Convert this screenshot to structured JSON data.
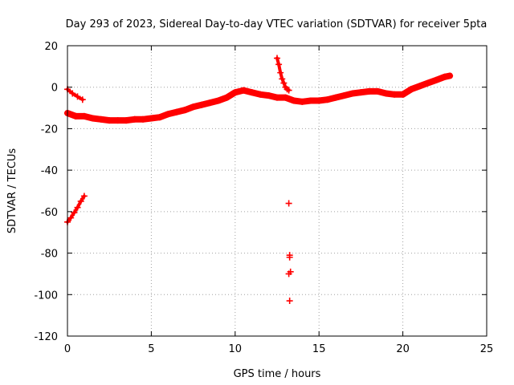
{
  "chart_data": {
    "type": "scatter",
    "title": "Day 293 of 2023, Sidereal Day-to-day VTEC variation (SDTVAR) for receiver 5pta",
    "xlabel": "GPS time / hours",
    "ylabel": "SDTVAR / TECUs",
    "xlim": [
      0,
      25
    ],
    "ylim": [
      -120,
      20
    ],
    "xticks": [
      0,
      5,
      10,
      15,
      20,
      25
    ],
    "yticks": [
      20,
      0,
      -20,
      -40,
      -60,
      -80,
      -100,
      -120
    ],
    "grid": true,
    "marker": "plus",
    "color": "#ff0000",
    "series": [
      {
        "name": "main-band",
        "band_width": 4,
        "x": [
          0.0,
          0.5,
          1.0,
          1.5,
          2.0,
          2.5,
          3.0,
          3.5,
          4.0,
          4.5,
          5.0,
          5.5,
          6.0,
          6.5,
          7.0,
          7.5,
          8.0,
          8.5,
          9.0,
          9.5,
          10.0,
          10.5,
          11.0,
          11.5,
          12.0,
          12.5,
          13.0,
          13.5,
          14.0,
          14.5,
          15.0,
          15.5,
          16.0,
          16.5,
          17.0,
          17.5,
          18.0,
          18.5,
          19.0,
          19.5,
          20.0,
          20.5,
          21.0,
          21.5,
          22.0,
          22.5,
          22.8
        ],
        "y": [
          -12.5,
          -14,
          -14,
          -15,
          -15.5,
          -16,
          -16,
          -16,
          -15.5,
          -15.5,
          -15,
          -14.5,
          -13,
          -12,
          -11,
          -9.5,
          -8.5,
          -7.5,
          -6.5,
          -5,
          -2.5,
          -1.5,
          -2.5,
          -3.5,
          -4,
          -5,
          -5,
          -6.5,
          -7,
          -6.5,
          -6.5,
          -6,
          -5,
          -4,
          -3,
          -2.5,
          -2,
          -2,
          -3,
          -3.5,
          -3.5,
          -1,
          0.5,
          2,
          3.5,
          5,
          5.5
        ]
      },
      {
        "name": "short-descending-segment",
        "band_width": 2,
        "x": [
          0.0,
          0.3,
          0.6,
          0.9
        ],
        "y": [
          -1,
          -3,
          -4.5,
          -6
        ]
      },
      {
        "name": "low-segment",
        "band_width": 2,
        "x": [
          0.0,
          0.2,
          0.4,
          0.6,
          0.8,
          1.0
        ],
        "y": [
          -65,
          -63,
          -60.5,
          -58,
          -55,
          -52.5
        ]
      },
      {
        "name": "spike-segment",
        "band_width": 2,
        "x": [
          12.5,
          12.6,
          12.7,
          12.8,
          12.9,
          13.0,
          13.1,
          13.2
        ],
        "y": [
          14,
          11,
          7,
          4,
          2,
          0,
          -1,
          -1.5
        ]
      },
      {
        "name": "isolated-points",
        "band_width": 0,
        "x": [
          13.2,
          13.25,
          13.25,
          13.3,
          13.2,
          13.25
        ],
        "y": [
          -56,
          -81,
          -82,
          -89,
          -90,
          -103
        ]
      }
    ]
  }
}
